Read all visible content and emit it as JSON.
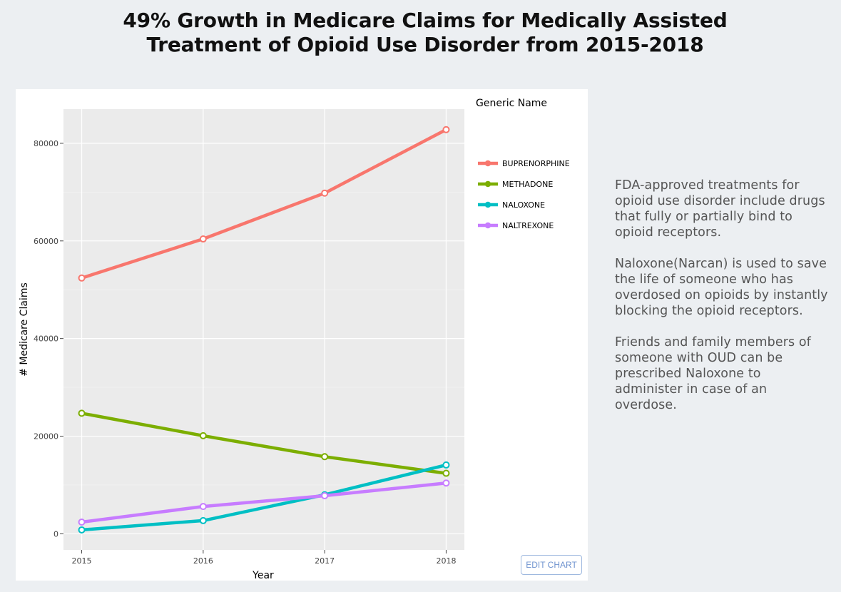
{
  "title_lines": [
    "49% Growth in Medicare Claims for Medically Assisted",
    "Treatment of Opioid Use Disorder from 2015-2018"
  ],
  "edit_button_label": "EDIT CHART",
  "sidebar": {
    "paragraphs": [
      "FDA-approved treatments for opioid use disorder include drugs that fully or partially bind to opioid receptors.",
      "Naloxone(Narcan) is used to save the life of someone who has overdosed on opioids by instantly blocking the opioid receptors.",
      "Friends and family members of someone with OUD can be prescribed Naloxone to administer in case of an overdose."
    ]
  },
  "chart_data": {
    "type": "line",
    "title": "49% Growth in Medicare Claims for Medically Assisted Treatment of Opioid Use Disorder from 2015-2018",
    "xlabel": "Year",
    "ylabel": "# Medicare Claims",
    "legend_title": "Generic Name",
    "legend_position": "right",
    "x": [
      2015,
      2016,
      2017,
      2018
    ],
    "x_tick_labels": [
      "2015",
      "2016",
      "2017",
      "2018"
    ],
    "y_ticks": [
      0,
      20000,
      40000,
      60000,
      80000
    ],
    "y_tick_labels": [
      "0",
      "20000",
      "40000",
      "60000",
      "80000"
    ],
    "xlim": [
      2014.85,
      2018.15
    ],
    "ylim": [
      -3300,
      87000
    ],
    "grid": true,
    "series": [
      {
        "name": "BUPRENORPHINE",
        "color": "#f8766d",
        "values": [
          52400,
          60400,
          69800,
          82800
        ]
      },
      {
        "name": "METHADONE",
        "color": "#7cae00",
        "values": [
          24700,
          20100,
          15800,
          12400
        ]
      },
      {
        "name": "NALOXONE",
        "color": "#00bfc4",
        "values": [
          800,
          2700,
          8000,
          14100
        ]
      },
      {
        "name": "NALTREXONE",
        "color": "#c77cff",
        "values": [
          2400,
          5600,
          7800,
          10400
        ]
      }
    ]
  }
}
